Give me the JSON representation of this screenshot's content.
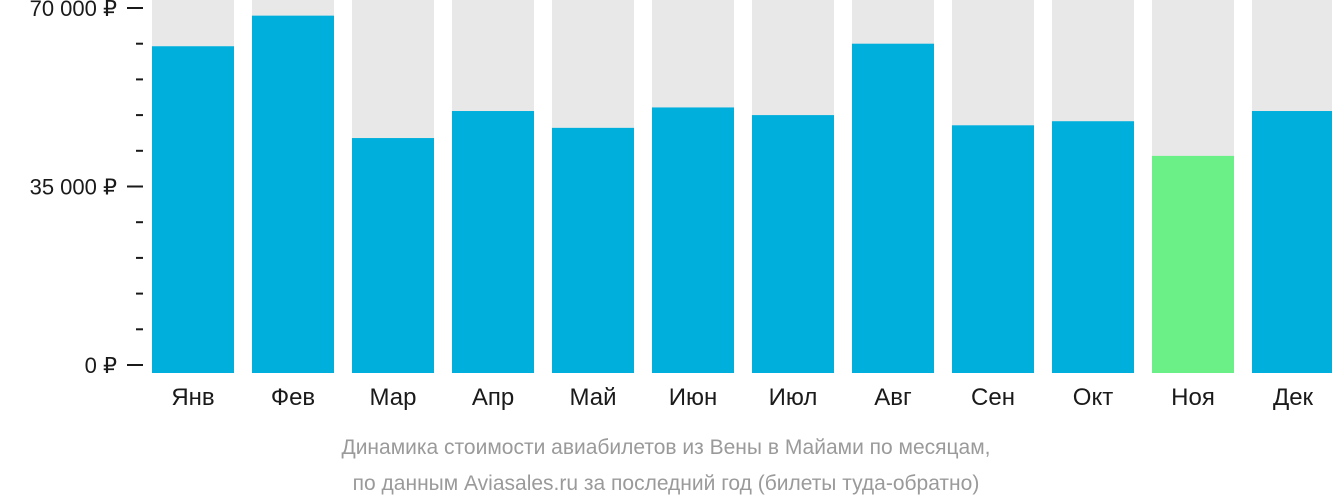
{
  "chart_data": {
    "type": "bar",
    "categories": [
      "Янв",
      "Фев",
      "Мар",
      "Апр",
      "Май",
      "Июн",
      "Июл",
      "Авг",
      "Сен",
      "Окт",
      "Ноя",
      "Дек"
    ],
    "values": [
      62500,
      68500,
      44500,
      49800,
      46500,
      50500,
      49000,
      63000,
      47000,
      47800,
      41000,
      49800
    ],
    "highlight_index": 10,
    "ylim": [
      0,
      72000
    ],
    "yticks": [
      {
        "value": 0,
        "label": "0 ₽"
      },
      {
        "value": 35000,
        "label": "35 000 ₽"
      },
      {
        "value": 70000,
        "label": "70 000 ₽"
      }
    ],
    "minor_tick_step": 7000,
    "colors": {
      "bar": "#00afdc",
      "highlight": "#6bef87",
      "background_bar": "#e8e8e8",
      "axis": "#1a1a1a"
    }
  },
  "caption": {
    "line1": "Динамика стоимости авиабилетов из Вены в Майами по месяцам,",
    "line2": "по данным Aviasales.ru за последний год (билеты туда-обратно)"
  }
}
